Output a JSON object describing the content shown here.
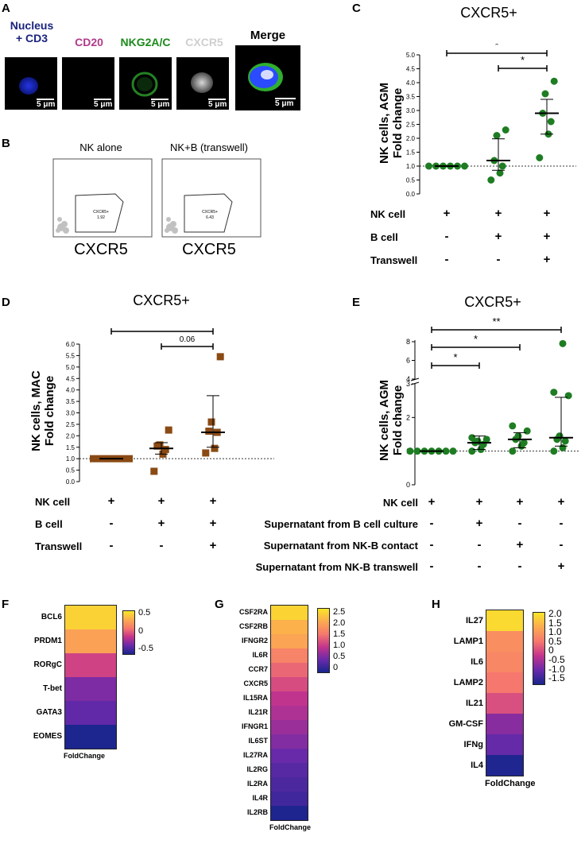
{
  "panels": {
    "A": {
      "letter": "A",
      "images": [
        {
          "label_lines": [
            "Nucleus",
            "+ CD3"
          ],
          "label_color": "#1a237e",
          "scale": "5 μm"
        },
        {
          "label_lines": [
            "CD20"
          ],
          "label_color": "#b03a8a",
          "scale": "5 μm"
        },
        {
          "label_lines": [
            "NKG2A/C"
          ],
          "label_color": "#1b8a1b",
          "scale": "5 μm"
        },
        {
          "label_lines": [
            "CXCR5"
          ],
          "label_color": "#d0d0d0",
          "scale": "5 μm"
        },
        {
          "label_lines": [
            "Merge"
          ],
          "label_color": "#000000",
          "scale": "5 μm"
        }
      ]
    },
    "B": {
      "letter": "B",
      "plots": [
        {
          "title": "NK alone",
          "gate_label": "CXCR5+",
          "gate_value": "1.92",
          "axis_label": "CXCR5"
        },
        {
          "title": "NK+B (transwell)",
          "gate_label": "CXCR5+",
          "gate_value": "6.43",
          "axis_label": "CXCR5"
        }
      ]
    },
    "C": {
      "letter": "C",
      "title": "CXCR5+",
      "ylabel_lines": [
        "NK cells, AGM",
        "Fold change"
      ],
      "rows": [
        {
          "label": "NK cell",
          "symbols": [
            "+",
            "+",
            "+"
          ]
        },
        {
          "label": "B cell",
          "symbols": [
            "-",
            "+",
            "+"
          ]
        },
        {
          "label": "Transwell",
          "symbols": [
            "-",
            "-",
            "+"
          ]
        }
      ],
      "sig": [
        "*",
        "*"
      ]
    },
    "D": {
      "letter": "D",
      "title": "CXCR5+",
      "ylabel_lines": [
        "NK cells, MAC",
        "Fold change"
      ],
      "rows": [
        {
          "label": "NK cell",
          "symbols": [
            "+",
            "+",
            "+"
          ]
        },
        {
          "label": "B cell",
          "symbols": [
            "-",
            "+",
            "+"
          ]
        },
        {
          "label": "Transwell",
          "symbols": [
            "-",
            "-",
            "+"
          ]
        }
      ],
      "sig": [
        "*",
        "0.06"
      ]
    },
    "E": {
      "letter": "E",
      "title": "CXCR5+",
      "ylabel_lines": [
        "NK cells, AGM",
        "Fold change"
      ],
      "rows": [
        {
          "label": "NK cell",
          "symbols": [
            "+",
            "+",
            "+",
            "+"
          ]
        },
        {
          "label": "Supernatant from B cell culture",
          "symbols": [
            "-",
            "+",
            "-",
            "-"
          ]
        },
        {
          "label": "Supernatant from NK-B contact",
          "symbols": [
            "-",
            "-",
            "+",
            "-"
          ]
        },
        {
          "label": "Supernatant from NK-B transwell",
          "symbols": [
            "-",
            "-",
            "-",
            "+"
          ]
        }
      ],
      "sig": [
        "*",
        "*",
        "**"
      ]
    },
    "F": {
      "letter": "F",
      "footer": "FoldChange"
    },
    "G": {
      "letter": "G",
      "footer": "FoldChange"
    },
    "H": {
      "letter": "H",
      "footer": "FoldChange"
    }
  },
  "chart_data": [
    {
      "id": "C",
      "type": "scatter",
      "categories": [
        "1",
        "2",
        "3"
      ],
      "points": [
        [
          1.0,
          1.0,
          1.0,
          1.0,
          1.0,
          1.0
        ],
        [
          0.5,
          0.75,
          1.0,
          1.2,
          2.1,
          2.3
        ],
        [
          1.3,
          2.15,
          2.6,
          2.9,
          3.6,
          4.05
        ]
      ],
      "median": [
        1.0,
        1.2,
        2.9
      ],
      "error_low": [
        1.0,
        0.85,
        2.15
      ],
      "error_high": [
        1.0,
        1.98,
        3.4
      ],
      "ylim": [
        0.0,
        5.0
      ],
      "yticks": [
        "0.0",
        "0.5",
        "1.0",
        "1.5",
        "2.0",
        "2.5",
        "3.0",
        "3.5",
        "4.0",
        "4.5",
        "5.0"
      ],
      "reference_line": 1.0,
      "color": "#1e7d22",
      "marker": "circle"
    },
    {
      "id": "D",
      "type": "scatter",
      "categories": [
        "1",
        "2",
        "3"
      ],
      "points": [
        [
          1.0,
          1.0,
          1.0,
          1.0,
          1.0,
          1.0
        ],
        [
          0.45,
          1.2,
          1.4,
          1.55,
          1.6,
          2.25
        ],
        [
          1.25,
          1.45,
          2.15,
          2.2,
          2.6,
          5.45
        ]
      ],
      "median": [
        1.0,
        1.45,
        2.15
      ],
      "error_low": [
        1.0,
        1.2,
        1.5
      ],
      "error_high": [
        1.0,
        1.7,
        3.75
      ],
      "ylim": [
        0.0,
        6.0
      ],
      "yticks": [
        "0.0",
        "0.5",
        "1.0",
        "1.5",
        "2.0",
        "2.5",
        "3.0",
        "3.5",
        "4.0",
        "4.5",
        "5.0",
        "5.5",
        "6.0"
      ],
      "reference_line": 1.0,
      "color": "#8a4a14",
      "marker": "square"
    },
    {
      "id": "E",
      "type": "scatter",
      "categories": [
        "1",
        "2",
        "3",
        "4"
      ],
      "points": [
        [
          1.0,
          1.0,
          1.0,
          1.0,
          1.0,
          1.0,
          1.0
        ],
        [
          1.0,
          1.05,
          1.2,
          1.25,
          1.3,
          1.35,
          1.4
        ],
        [
          1.0,
          1.15,
          1.25,
          1.35,
          1.45,
          1.6,
          1.75
        ],
        [
          1.0,
          1.1,
          1.3,
          1.35,
          1.45,
          2.65,
          2.75,
          7.8
        ]
      ],
      "median": [
        1.0,
        1.25,
        1.35,
        1.4
      ],
      "error_low": [
        1.0,
        1.05,
        1.1,
        1.15
      ],
      "error_high": [
        1.0,
        1.45,
        1.55,
        2.6
      ],
      "ylim": [
        0,
        8
      ],
      "yticks": [
        "0",
        "1",
        "2",
        "3",
        "4",
        "6",
        "8"
      ],
      "reference_line": 1.0,
      "color": "#1e7d22",
      "marker": "circle"
    },
    {
      "id": "F",
      "type": "heatmap",
      "rows": [
        "BCL6",
        "PRDM1",
        "RORgC",
        "T-bet",
        "GATA3",
        "EOMES"
      ],
      "values": [
        0.55,
        0.42,
        0.05,
        -0.25,
        -0.35,
        -0.6
      ],
      "colorbar_ticks": [
        "0.5",
        "0",
        "-0.5"
      ],
      "xlabel": "FoldChange"
    },
    {
      "id": "G",
      "type": "heatmap",
      "rows": [
        "CSF2RA",
        "CSF2RB",
        "IFNGR2",
        "IL6R",
        "CCR7",
        "CXCR5",
        "IL15RA",
        "IL21R",
        "IFNGR1",
        "IL6ST",
        "IL27RA",
        "IL2RG",
        "IL2RA",
        "IL4R",
        "IL2RB"
      ],
      "values": [
        2.6,
        2.4,
        2.3,
        2.0,
        1.75,
        1.5,
        1.25,
        1.1,
        0.95,
        0.75,
        0.55,
        0.4,
        0.3,
        0.2,
        -0.1
      ],
      "colorbar_ticks": [
        "2.5",
        "2.0",
        "1.5",
        "1.0",
        "0.5",
        "0"
      ],
      "xlabel": "FoldChange"
    },
    {
      "id": "H",
      "type": "heatmap",
      "rows": [
        "IL27",
        "LAMP1",
        "IL6",
        "LAMP2",
        "IL21",
        "GM-CSF",
        "IFNg",
        "IL4"
      ],
      "values": [
        2.0,
        1.3,
        1.2,
        1.0,
        0.5,
        -0.5,
        -0.9,
        -1.7
      ],
      "colorbar_ticks": [
        "2.0",
        "1.5",
        "1.0",
        "0.5",
        "0",
        "-0.5",
        "-1.0",
        "-1.5"
      ],
      "xlabel": "FoldChange"
    }
  ]
}
